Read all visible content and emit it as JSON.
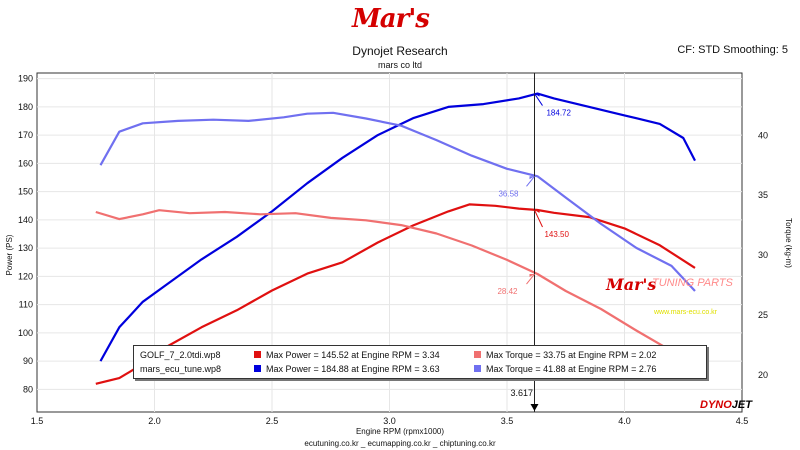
{
  "header": {
    "logo_text": "Mar's",
    "title": "Dynojet Research",
    "subtitle": "mars co ltd",
    "correction": "CF: STD Smoothing: 5"
  },
  "footer": "ecutuning.co.kr _ ecumapping.co.kr _ chiptuning.co.kr",
  "watermark": {
    "logo_text": "Mar's",
    "text": "TUNING PARTS",
    "url": "www.mars-ecu.co.kr"
  },
  "brand": {
    "part1": "DYNO",
    "part2": "JET"
  },
  "colors": {
    "power_stock": "#e01010",
    "power_tuned": "#0000dd",
    "torque_stock": "#f07070",
    "torque_tuned": "#7070f0",
    "cursor": "#222222",
    "logo": "#d40000"
  },
  "legend": {
    "rows": [
      {
        "file": "GOLF_7_2.0tdi.wp8",
        "power": "Max Power = 145.52 at Engine RPM = 3.34",
        "torque": "Max Torque = 33.75 at Engine RPM = 2.02"
      },
      {
        "file": "mars_ecu_tune.wp8",
        "power": "Max Power = 184.88 at Engine RPM = 3.63",
        "torque": "Max Torque = 41.88 at Engine RPM = 2.76"
      }
    ]
  },
  "chart_data": {
    "type": "line",
    "title": "Dynojet Research",
    "subtitle": "mars co ltd",
    "xlabel": "Engine RPM (rpmx1000)",
    "ylabel_left": "Power (PS)",
    "ylabel_right": "Torque (kg-m)",
    "xlim": [
      1.5,
      4.5
    ],
    "ylim_left": [
      72,
      192
    ],
    "ylim_right": [
      16.9,
      45.2
    ],
    "x_ticks": [
      "1.5",
      "2.0",
      "2.5",
      "3.0",
      "3.5",
      "4.0",
      "4.5"
    ],
    "y_left_ticks": [
      "80",
      "90",
      "100",
      "110",
      "120",
      "130",
      "140",
      "150",
      "160",
      "170",
      "180",
      "190"
    ],
    "y_right_ticks": [
      "20",
      "25",
      "30",
      "35",
      "40"
    ],
    "grid": true,
    "legend_position": "bottom-center",
    "cursor": {
      "x": 3.617,
      "label": "3.617",
      "markers": [
        {
          "label": "184.72",
          "value": 184.72,
          "axis": "left",
          "series": "Max Power mars_ecu_tune"
        },
        {
          "label": "36.58",
          "value": 36.58,
          "axis": "right",
          "series": "Max Torque mars_ecu_tune"
        },
        {
          "label": "143.50",
          "value": 143.5,
          "axis": "left",
          "series": "Max Power GOLF_7_2.0tdi"
        },
        {
          "label": "28.42",
          "value": 28.42,
          "axis": "right",
          "series": "Max Torque GOLF_7_2.0tdi"
        }
      ]
    },
    "series": [
      {
        "key": "power_tuned",
        "axis": "left",
        "x": [
          1.77,
          1.85,
          1.95,
          2.05,
          2.2,
          2.35,
          2.5,
          2.65,
          2.8,
          2.95,
          3.1,
          3.25,
          3.4,
          3.55,
          3.63,
          3.7,
          3.85,
          4.0,
          4.15,
          4.25,
          4.3
        ],
        "y": [
          90,
          102,
          111,
          117,
          126,
          134,
          143,
          153,
          162,
          170,
          176,
          180,
          181,
          183,
          184.72,
          183,
          180,
          177,
          174,
          169,
          161
        ]
      },
      {
        "key": "power_stock",
        "axis": "left",
        "x": [
          1.75,
          1.85,
          1.95,
          2.05,
          2.2,
          2.35,
          2.5,
          2.65,
          2.8,
          2.95,
          3.1,
          3.25,
          3.34,
          3.45,
          3.55,
          3.63,
          3.7,
          3.85,
          4.0,
          4.15,
          4.3
        ],
        "y": [
          82,
          84,
          89,
          95,
          102,
          108,
          115,
          121,
          125,
          132,
          138,
          143,
          145.5,
          145,
          144,
          143.5,
          142.5,
          141,
          137,
          131,
          123
        ]
      },
      {
        "key": "torque_tuned",
        "axis": "right",
        "x": [
          1.77,
          1.85,
          1.95,
          2.1,
          2.25,
          2.4,
          2.55,
          2.65,
          2.76,
          2.9,
          3.05,
          3.2,
          3.35,
          3.5,
          3.63,
          3.75,
          3.9,
          4.05,
          4.2,
          4.3
        ],
        "y": [
          37.5,
          40.3,
          41.0,
          41.2,
          41.3,
          41.2,
          41.5,
          41.8,
          41.88,
          41.4,
          40.8,
          39.6,
          38.3,
          37.2,
          36.58,
          34.8,
          32.6,
          30.6,
          29.1,
          27.0
        ]
      },
      {
        "key": "torque_stock",
        "axis": "right",
        "x": [
          1.75,
          1.85,
          1.95,
          2.02,
          2.15,
          2.3,
          2.45,
          2.6,
          2.75,
          2.9,
          3.05,
          3.2,
          3.35,
          3.5,
          3.63,
          3.75,
          3.9,
          4.05,
          4.2,
          4.3
        ],
        "y": [
          33.6,
          33.0,
          33.4,
          33.75,
          33.5,
          33.6,
          33.4,
          33.5,
          33.1,
          32.9,
          32.5,
          31.8,
          30.8,
          29.6,
          28.42,
          27.0,
          25.5,
          23.7,
          22.0,
          20.5
        ]
      }
    ]
  }
}
